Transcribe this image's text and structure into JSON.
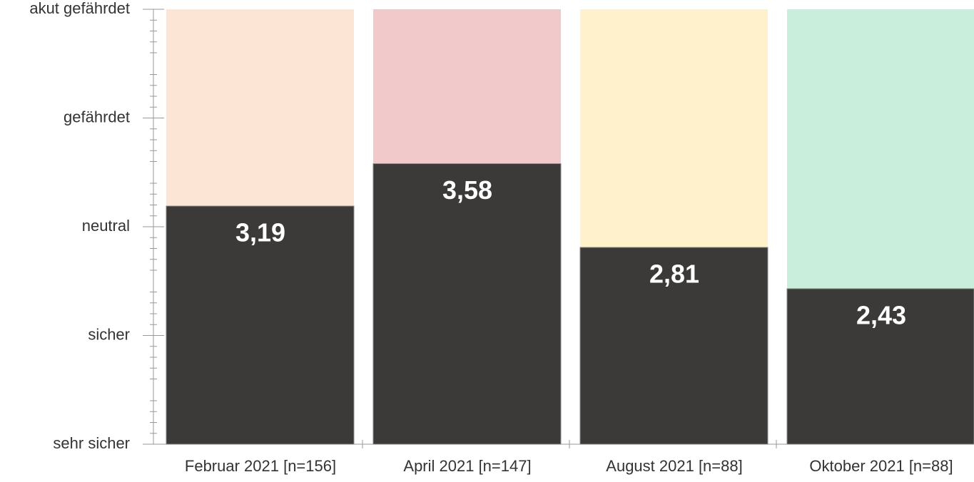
{
  "chart_data": {
    "type": "bar",
    "categories": [
      "Februar 2021 [n=156]",
      "April 2021 [n=147]",
      "August 2021 [n=88]",
      "Oktober 2021 [n=88]"
    ],
    "values": [
      3.19,
      3.58,
      2.81,
      2.43
    ],
    "value_labels": [
      "3,19",
      "3,58",
      "2,81",
      "2,43"
    ],
    "color": "#3b3a38",
    "background_colors": [
      "#fce5d4",
      "#f2c9cb",
      "#fff1cc",
      "#c9eedb"
    ],
    "ylim": [
      1,
      5
    ],
    "yticks": [
      {
        "value": 1,
        "label": "sehr sicher"
      },
      {
        "value": 2,
        "label": "sicher"
      },
      {
        "value": 3,
        "label": "neutral"
      },
      {
        "value": 4,
        "label": "gefährdet"
      },
      {
        "value": 5,
        "label": "akut gefährdet"
      }
    ],
    "grid": false
  }
}
